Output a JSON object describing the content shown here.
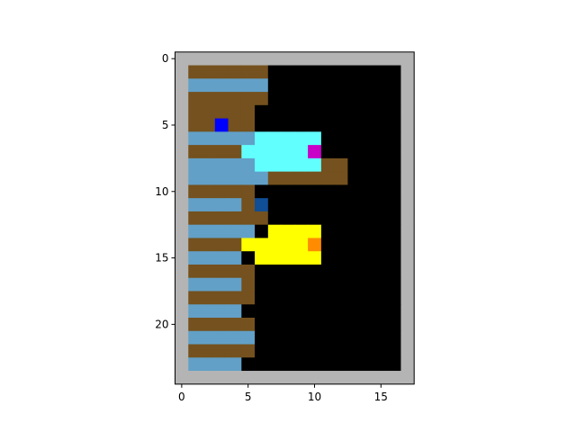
{
  "grid": {
    "cols": 18,
    "rows": 25,
    "palette": {
      "W": "#b4b4b4",
      "B": "#000000",
      "D": "#74511e",
      "L": "#62a0c8",
      "C": "#62ffff",
      "Y": "#ffff00",
      "P": "#c800c8",
      "O": "#ff8c00",
      "U": "#0000ff",
      "N": "#104e96"
    },
    "cells": [
      "WWWWWWWWWWWWWWWWWW",
      "WDDDDDDBBBBBBBBBBW",
      "WLLLLLLBBBBBBBBBBW",
      "WDDDDDDBBBBBBBBBBW",
      "WDDDDDBBBBBBBBBBBW",
      "WDDUDDBBBBBBBBBBBW",
      "WLLLLLCCCCCBBBBBBW",
      "WDDDDCCCCCPBBBBBBW",
      "WLLLLLCCCCCDDBBBBW",
      "WLLLLLLDDDDDDBBBBW",
      "WDDDDDBBBBBBBBBBBW",
      "WLLLLDNBBBBBBBBBBW",
      "WDDDDDDBBBBBBBBBBW",
      "WLLLLLBYYYYBBBBBBW",
      "WDDDDYYYYYOBBBBBBW",
      "WLLLLBYYYYYBBBBBBW",
      "WDDDDDBBBBBBBBBBBW",
      "WLLLLDBBBBBBBBBBBW",
      "WDDDDDBBBBBBBBBBBW",
      "WLLLLBBBBBBBBBBBBW",
      "WDDDDDBBBBBBBBBBBW",
      "WLLLLLBBBBBBBBBBBW",
      "WDDDDDBBBBBBBBBBBW",
      "WLLLLBBBBBBBBBBBBW",
      "WWWWWWWWWWWWWWWWWW"
    ]
  },
  "axes": {
    "xticks": [
      0,
      5,
      10,
      15
    ],
    "yticks": [
      0,
      5,
      10,
      15,
      20
    ],
    "xtick_labels": [
      "0",
      "5",
      "10",
      "15"
    ],
    "ytick_labels": [
      "0",
      "5",
      "10",
      "15",
      "20"
    ]
  }
}
